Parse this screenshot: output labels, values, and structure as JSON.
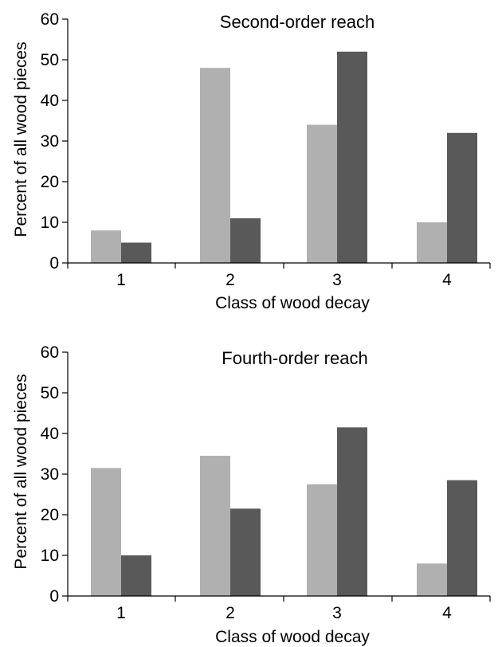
{
  "colors": {
    "light": "#b0b0b0",
    "dark": "#595959"
  },
  "chart_data": [
    {
      "type": "bar",
      "title": "Second-order reach",
      "xlabel": "Class of wood decay",
      "ylabel": "Percent of all wood pieces",
      "categories": [
        "1",
        "2",
        "3",
        "4"
      ],
      "yticks": [
        "0",
        "10",
        "20",
        "30",
        "40",
        "50",
        "60"
      ],
      "ylim": [
        0,
        60
      ],
      "series": [
        {
          "values": [
            8,
            48,
            34,
            10
          ]
        },
        {
          "values": [
            5,
            11,
            52,
            32
          ]
        }
      ]
    },
    {
      "type": "bar",
      "title": "Fourth-order reach",
      "xlabel": "Class of wood decay",
      "ylabel": "Percent of all wood pieces",
      "categories": [
        "1",
        "2",
        "3",
        "4"
      ],
      "yticks": [
        "0",
        "10",
        "20",
        "30",
        "40",
        "50",
        "60"
      ],
      "ylim": [
        0,
        60
      ],
      "series": [
        {
          "values": [
            31.5,
            34.5,
            27.5,
            8
          ]
        },
        {
          "values": [
            10,
            21.5,
            41.5,
            28.5
          ]
        }
      ]
    }
  ]
}
